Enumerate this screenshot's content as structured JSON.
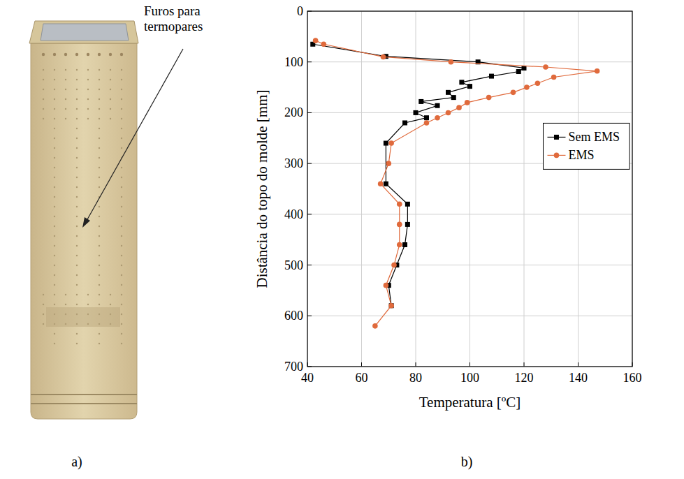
{
  "panels": [
    {
      "letter": "a)",
      "annotation": "Furos para termopares"
    },
    {
      "letter": "b)"
    }
  ],
  "chart_data": {
    "type": "line",
    "x_label": "Temperatura [ºC]",
    "y_label": "Distância do topo do molde [mm]",
    "xlim": [
      40,
      160
    ],
    "xticks": [
      40,
      60,
      80,
      100,
      120,
      140,
      160
    ],
    "ylim": [
      700,
      0
    ],
    "yticks": [
      0,
      100,
      200,
      300,
      400,
      500,
      600,
      700
    ],
    "grid": true,
    "legend": "right",
    "series": [
      {
        "name": "Sem EMS",
        "color": "#000000",
        "marker": "square",
        "line_style": "solid",
        "x": [
          42,
          69,
          103,
          120,
          118,
          108,
          97,
          100,
          92,
          94,
          82,
          88,
          80,
          84,
          76,
          69,
          69,
          77,
          77,
          76,
          73,
          70,
          71
        ],
        "values": [
          65,
          89,
          100,
          112,
          119,
          128,
          140,
          148,
          160,
          170,
          178,
          186,
          200,
          210,
          220,
          260,
          340,
          380,
          420,
          460,
          500,
          540,
          580
        ]
      },
      {
        "name": "EMS",
        "color": "#e06a3c",
        "marker": "circle",
        "line_style": "solid",
        "x": [
          43,
          46,
          68,
          93,
          128,
          147,
          131,
          125,
          121,
          116,
          107,
          99,
          96,
          92,
          88,
          84,
          71,
          70,
          67,
          74,
          74,
          74,
          72,
          69,
          71,
          65
        ],
        "values": [
          58,
          65,
          90,
          100,
          110,
          118,
          130,
          142,
          150,
          160,
          170,
          180,
          190,
          200,
          210,
          220,
          260,
          300,
          340,
          380,
          420,
          460,
          500,
          540,
          580,
          620
        ]
      }
    ]
  }
}
